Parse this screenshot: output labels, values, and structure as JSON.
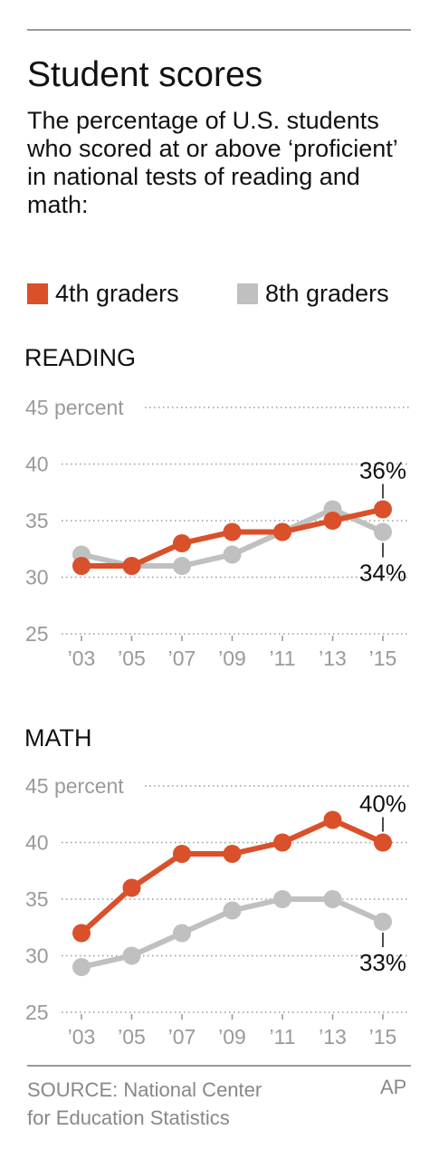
{
  "title": "Student scores",
  "subtitle": "The percentage of U.S. students who scored at or above ‘proficient’ in national tests of reading and math:",
  "legend": [
    {
      "label": "4th graders",
      "color": "#d9502a"
    },
    {
      "label": "8th graders",
      "color": "#c0c0c0"
    }
  ],
  "source": {
    "line1": "SOURCE: National Center",
    "line2": "for Education Statistics",
    "credit": "AP"
  },
  "chart_data": [
    {
      "type": "line",
      "title": "READING",
      "ylabel": "percent",
      "x": [
        "’03",
        "’05",
        "’07",
        "’09",
        "’11",
        "’13",
        "’15"
      ],
      "y_ticks": [
        "45 percent",
        "40",
        "35",
        "30",
        "25"
      ],
      "ylim": [
        25,
        45
      ],
      "series": [
        {
          "name": "4th graders",
          "color": "#d9502a",
          "values": [
            31,
            31,
            33,
            34,
            34,
            35,
            36
          ]
        },
        {
          "name": "8th graders",
          "color": "#c0c0c0",
          "values": [
            32,
            31,
            31,
            32,
            34,
            36,
            34
          ]
        }
      ],
      "annotations": [
        "36%",
        "34%"
      ]
    },
    {
      "type": "line",
      "title": "MATH",
      "ylabel": "percent",
      "x": [
        "’03",
        "’05",
        "’07",
        "’09",
        "’11",
        "’13",
        "’15"
      ],
      "y_ticks": [
        "45 percent",
        "40",
        "35",
        "30",
        "25"
      ],
      "ylim": [
        25,
        45
      ],
      "series": [
        {
          "name": "4th graders",
          "color": "#d9502a",
          "values": [
            32,
            36,
            39,
            39,
            40,
            42,
            40
          ]
        },
        {
          "name": "8th graders",
          "color": "#c0c0c0",
          "values": [
            29,
            30,
            32,
            34,
            35,
            35,
            33
          ]
        }
      ],
      "annotations": [
        "40%",
        "33%"
      ]
    }
  ]
}
